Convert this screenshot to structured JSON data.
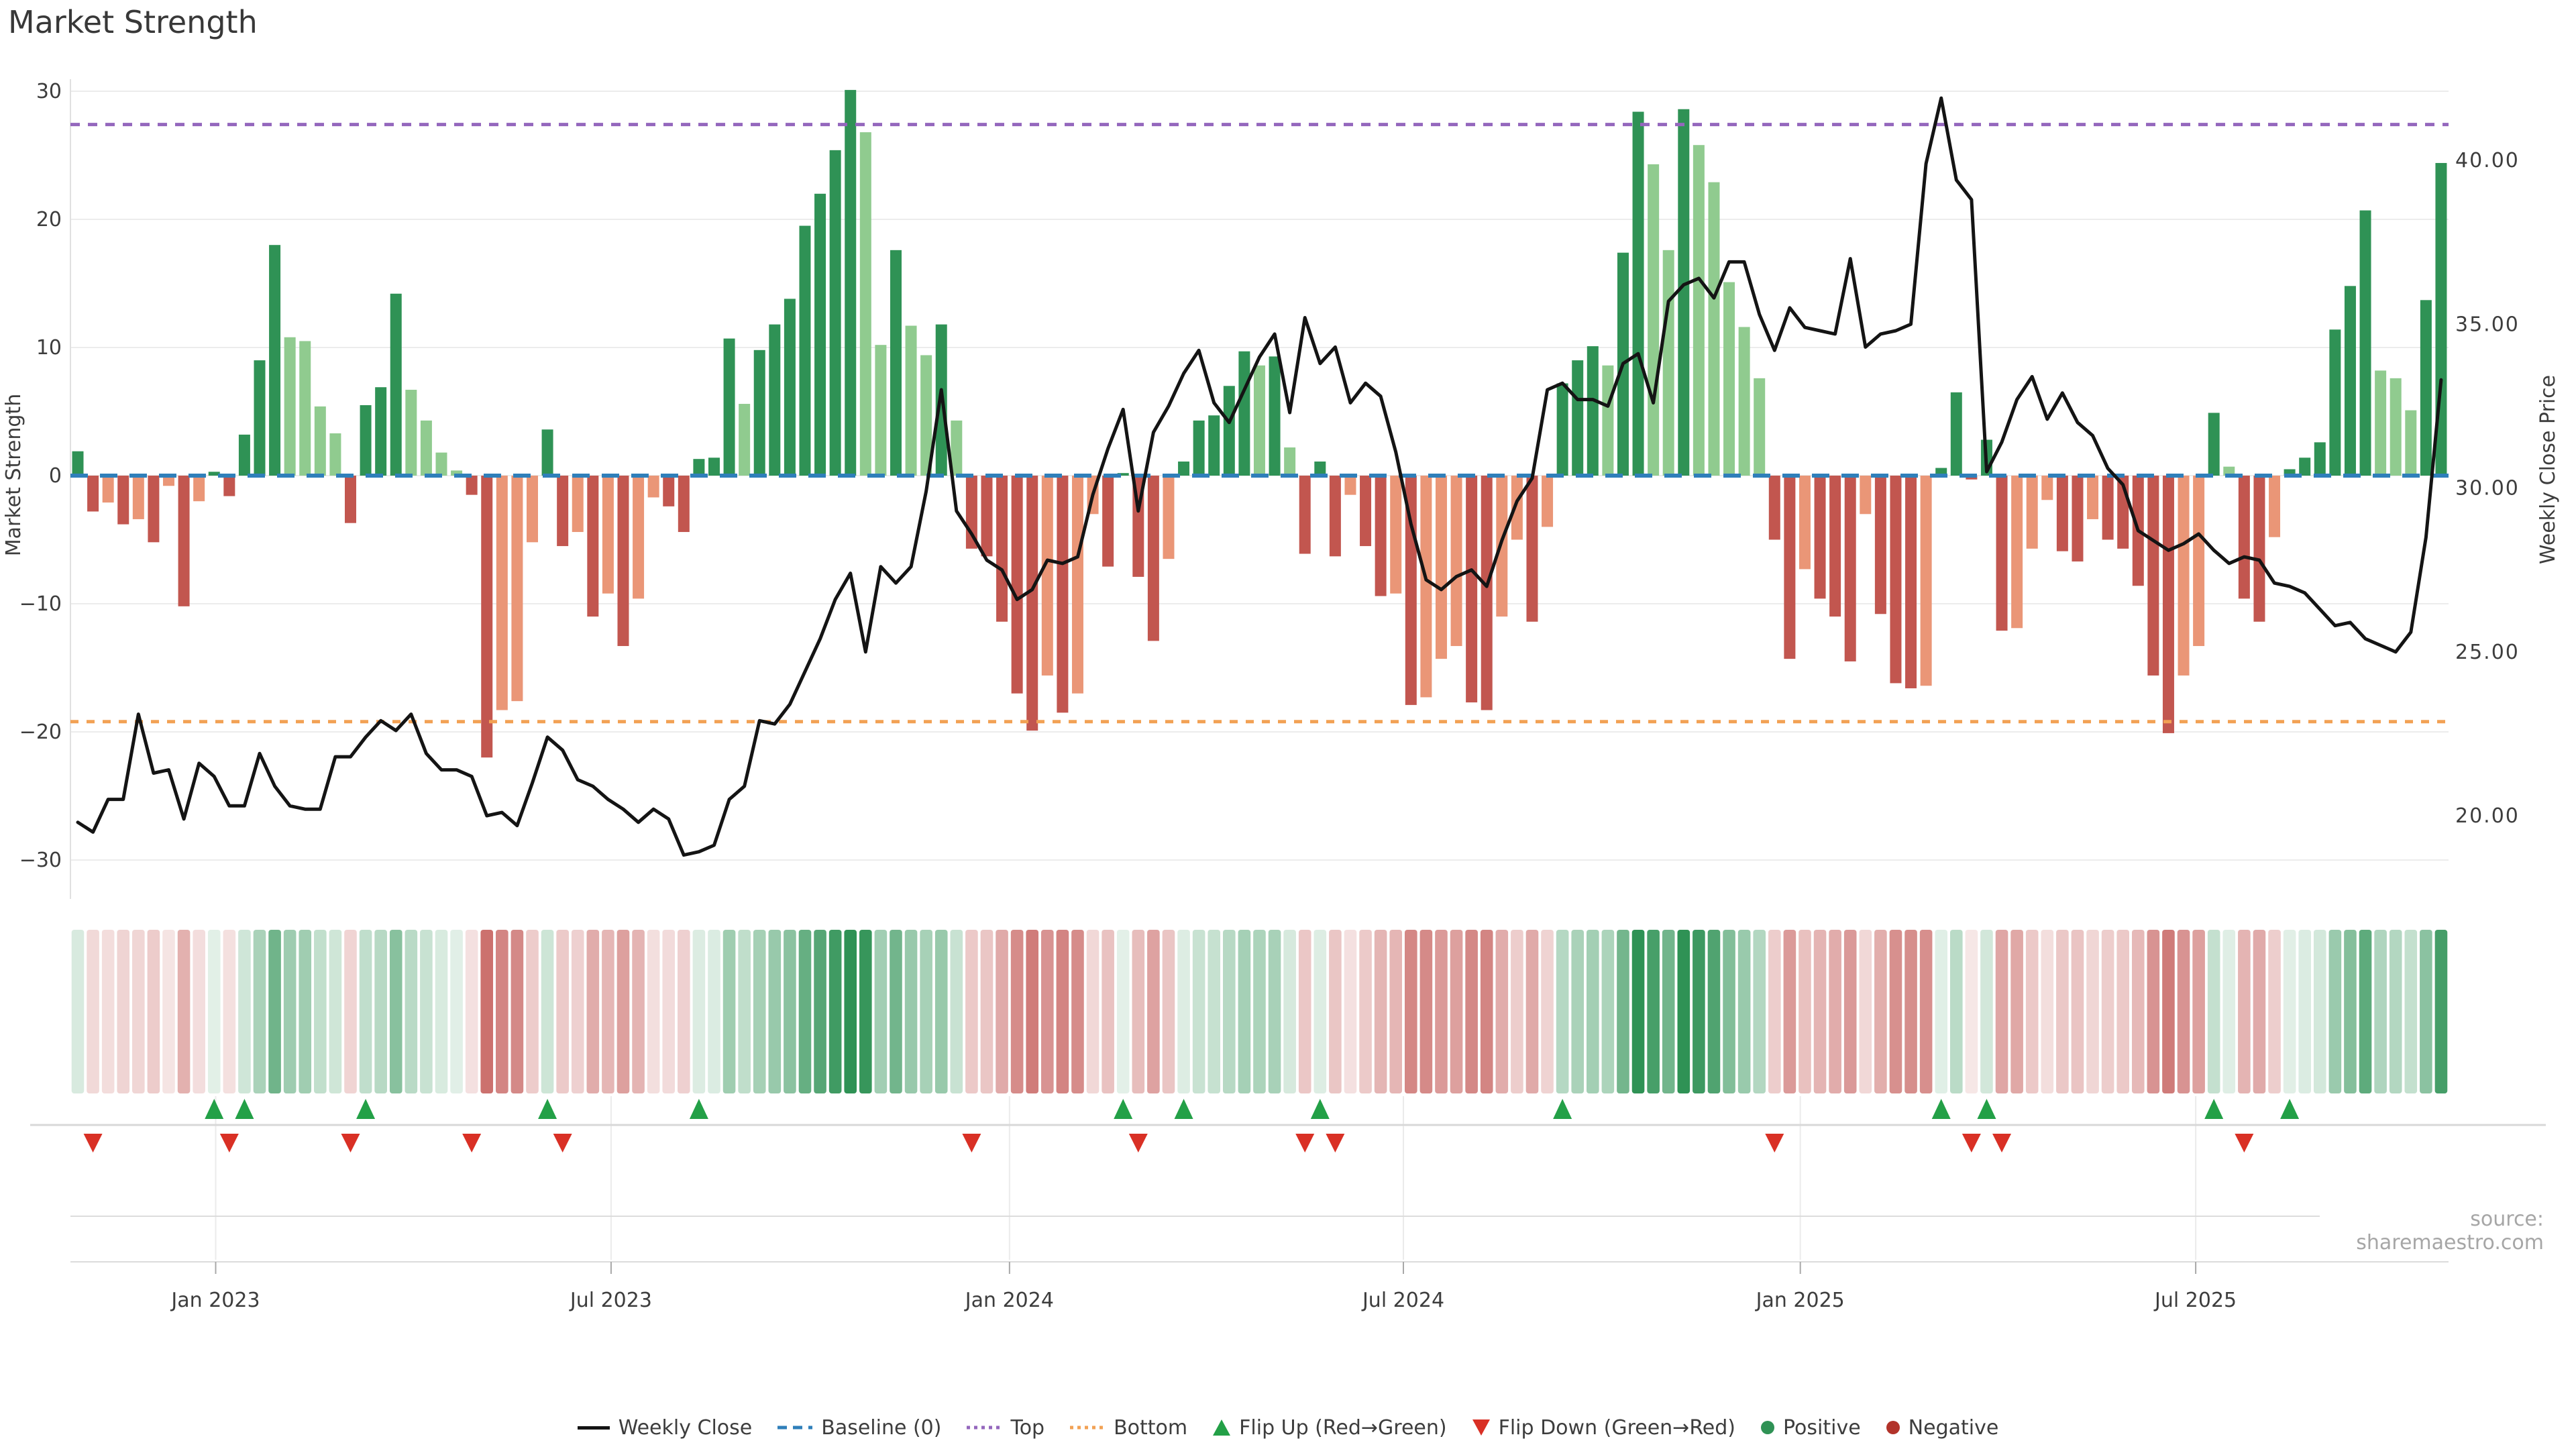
{
  "page": {
    "title": "Market Strength",
    "source_note": "source: sharemaestro.com"
  },
  "colors": {
    "pos_dark": "#2f9255",
    "pos_light": "#90cb8f",
    "neg_dark": "#c2564f",
    "neg_light": "#ea9677",
    "price_line": "#141414",
    "baseline": "#2f7fba",
    "top_line": "#9467bd",
    "bottom_line": "#f2a154",
    "flip_up": "#23a047",
    "flip_down": "#d93025",
    "positive_dot": "#2f9255",
    "negative_dot": "#b2332a",
    "grid": "#ececec",
    "spine": "#e0e0e0",
    "band_rule": "#d8d8d8",
    "axis_text": "#3d3d3d",
    "muted_text": "#a6a6a6"
  },
  "legend": {
    "items": [
      {
        "label": "Weekly Close",
        "symbol": "line",
        "color": "#141414"
      },
      {
        "label": "Baseline (0)",
        "symbol": "dashed",
        "color": "#2f7fba"
      },
      {
        "label": "Top",
        "symbol": "dotted",
        "color": "#9467bd"
      },
      {
        "label": "Bottom",
        "symbol": "dotted",
        "color": "#f2a154"
      },
      {
        "label": "Flip Up (Red→Green)",
        "symbol": "triangle-up",
        "color": "#23a047"
      },
      {
        "label": "Flip Down (Green→Red)",
        "symbol": "triangle-down",
        "color": "#d93025"
      },
      {
        "label": "Positive",
        "symbol": "circle",
        "color": "#2f9255"
      },
      {
        "label": "Negative",
        "symbol": "circle",
        "color": "#b2332a"
      }
    ]
  },
  "chart_data": {
    "type": "bar+line",
    "title": "Market Strength",
    "x_unit": "week",
    "weeks": 157,
    "x_ticks": [
      {
        "label": "Jan 2023",
        "week": 9.1
      },
      {
        "label": "Jul 2023",
        "week": 35.2
      },
      {
        "label": "Jan 2024",
        "week": 61.5
      },
      {
        "label": "Jul 2024",
        "week": 87.5
      },
      {
        "label": "Jan 2025",
        "week": 113.7
      },
      {
        "label": "Jul 2025",
        "week": 139.8
      }
    ],
    "left_axis": {
      "label": "Market Strength",
      "ticks": [
        30,
        20,
        10,
        0,
        -10,
        -20,
        -30
      ],
      "range": [
        -31.5,
        31.5
      ]
    },
    "right_axis": {
      "label": "Weekly Close Price",
      "tick_labels": [
        "40.00",
        "35.00",
        "30.00",
        "25.00",
        "20.00"
      ],
      "tick_values": [
        40,
        35,
        30,
        25,
        20
      ]
    },
    "thresholds": {
      "baseline": 0,
      "top": 27.4,
      "bottom": -19.2
    },
    "strength": [
      1.9,
      -2.8,
      -2.1,
      -3.8,
      -3.4,
      -5.2,
      -0.8,
      -10.2,
      -2.0,
      0.3,
      -1.6,
      3.2,
      9.0,
      18.0,
      10.8,
      10.5,
      5.4,
      3.3,
      -3.7,
      5.5,
      6.9,
      14.2,
      6.7,
      4.3,
      1.8,
      0.4,
      -1.5,
      -22.0,
      -18.3,
      -17.6,
      -5.2,
      3.6,
      -5.5,
      -4.4,
      -11.0,
      -9.2,
      -13.3,
      -9.6,
      -1.7,
      -2.4,
      -4.4,
      1.3,
      1.4,
      10.7,
      5.6,
      9.8,
      11.8,
      13.8,
      19.5,
      22.0,
      25.4,
      30.1,
      26.8,
      10.2,
      17.6,
      11.7,
      9.4,
      11.8,
      4.3,
      -5.7,
      -6.3,
      -11.4,
      -17.0,
      -19.9,
      -15.6,
      -18.5,
      -17.0,
      -3.0,
      -7.1,
      0.2,
      -7.9,
      -12.9,
      -6.5,
      1.1,
      4.3,
      4.7,
      7.0,
      9.7,
      8.6,
      9.3,
      2.2,
      -6.1,
      1.1,
      -6.3,
      -1.5,
      -5.5,
      -9.4,
      -9.2,
      -17.9,
      -17.3,
      -14.3,
      -13.3,
      -17.7,
      -18.3,
      -11.0,
      -5.0,
      -11.4,
      -4.0,
      7.2,
      9.0,
      10.1,
      8.6,
      17.4,
      28.4,
      24.3,
      17.6,
      28.6,
      25.8,
      22.9,
      15.1,
      11.6,
      7.6,
      -5.0,
      -14.3,
      -7.3,
      -9.6,
      -11.0,
      -14.5,
      -3.0,
      -10.8,
      -16.2,
      -16.6,
      -16.4,
      0.6,
      6.5,
      -0.3,
      2.8,
      -12.1,
      -11.9,
      -5.7,
      -1.9,
      -5.9,
      -6.7,
      -3.4,
      -5.0,
      -5.7,
      -8.6,
      -15.6,
      -20.1,
      -15.6,
      -13.3,
      4.9,
      0.7,
      -9.6,
      -11.4,
      -4.8,
      0.5,
      1.4,
      2.6,
      11.4,
      14.8,
      20.7,
      8.2,
      7.6,
      5.1,
      13.7,
      24.4
    ],
    "weekly_close": [
      19.8,
      19.5,
      20.5,
      20.5,
      23.1,
      21.3,
      21.4,
      19.9,
      21.6,
      21.2,
      20.3,
      20.3,
      21.9,
      20.9,
      20.3,
      20.2,
      20.2,
      21.8,
      21.8,
      22.4,
      22.9,
      22.6,
      23.1,
      21.9,
      21.4,
      21.4,
      21.2,
      20.0,
      20.1,
      19.7,
      21.0,
      22.4,
      22.0,
      21.1,
      20.9,
      20.5,
      20.2,
      19.8,
      20.2,
      19.9,
      18.8,
      18.9,
      19.1,
      20.5,
      20.9,
      22.9,
      22.8,
      23.4,
      24.4,
      25.4,
      26.6,
      27.4,
      25.0,
      27.6,
      27.1,
      27.6,
      29.9,
      33.0,
      29.3,
      28.6,
      27.8,
      27.5,
      26.6,
      26.9,
      27.8,
      27.7,
      27.9,
      29.8,
      31.2,
      32.4,
      29.3,
      31.7,
      32.5,
      33.5,
      34.2,
      32.6,
      32.0,
      33.0,
      34.0,
      34.7,
      32.3,
      35.2,
      33.8,
      34.3,
      32.6,
      33.2,
      32.8,
      31.1,
      28.9,
      27.2,
      26.9,
      27.3,
      27.5,
      27.0,
      28.4,
      29.6,
      30.3,
      33.0,
      33.2,
      32.7,
      32.7,
      32.5,
      33.8,
      34.1,
      32.6,
      35.7,
      36.2,
      36.4,
      35.8,
      36.9,
      36.9,
      35.3,
      34.2,
      35.5,
      34.9,
      34.8,
      34.7,
      37.0,
      34.3,
      34.7,
      34.8,
      35.0,
      39.9,
      41.9,
      39.4,
      38.8,
      30.5,
      31.4,
      32.7,
      33.4,
      32.1,
      32.9,
      32.0,
      31.6,
      30.6,
      30.1,
      28.7,
      28.4,
      28.1,
      28.3,
      28.6,
      28.1,
      27.7,
      27.9,
      27.8,
      27.1,
      27.0,
      26.8,
      26.3,
      25.8,
      25.9,
      25.4,
      25.2,
      25.0,
      25.6,
      28.5,
      33.3
    ],
    "flip_up_weeks": [
      9,
      11,
      19,
      31,
      41,
      69,
      73,
      82,
      98,
      123,
      126,
      141,
      146
    ],
    "flip_down_weeks": [
      1,
      10,
      18,
      26,
      32,
      59,
      70,
      81,
      83,
      112,
      125,
      127,
      143
    ],
    "legend_entries": [
      "Weekly Close",
      "Baseline (0)",
      "Top",
      "Bottom",
      "Flip Up (Red→Green)",
      "Flip Down (Green→Red)",
      "Positive",
      "Negative"
    ]
  }
}
